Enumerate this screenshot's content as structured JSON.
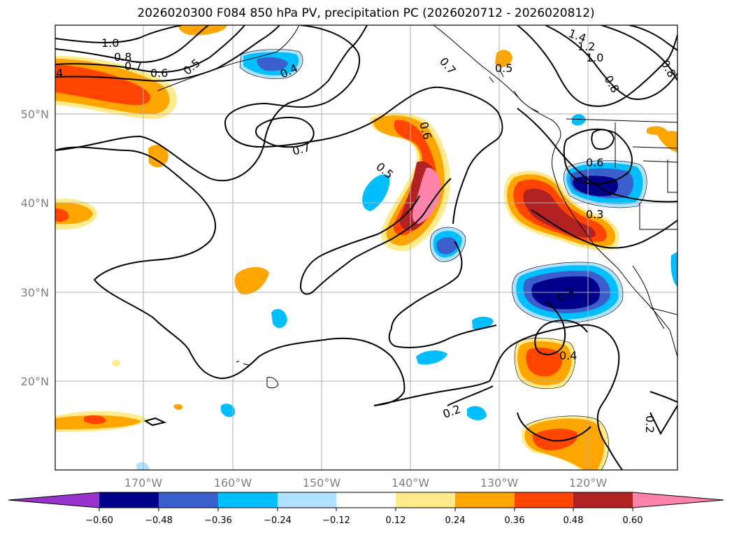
{
  "title": "2026020300 F084 850 hPa PV, precipitation PC (2026020712 - 2026020812)",
  "latitude_labels": [
    "50°N",
    "40°N",
    "30°N",
    "20°N"
  ],
  "longitude_labels": [
    "170°W",
    "160°W",
    "150°W",
    "140°W",
    "130°W",
    "120°W"
  ],
  "colorbar": {
    "tick_labels": [
      "−0.60",
      "−0.48",
      "−0.36",
      "−0.24",
      "−0.12",
      "0.12",
      "0.24",
      "0.36",
      "0.48",
      "0.60"
    ],
    "colors": [
      "#9932cc",
      "#00008b",
      "#3a5fcd",
      "#00bfff",
      "#b0e2ff",
      "#ffffff",
      "#ffeb8c",
      "#ffa500",
      "#ff4500",
      "#b22222",
      "#ff82ab"
    ]
  },
  "contour_labels": [
    "1.0",
    "0.8",
    "0.7",
    "0.6",
    "0.5",
    "0.4",
    "4",
    "1.4",
    "1.2",
    "1.0",
    "0.8",
    "0.8",
    "0.7",
    "0.5",
    "0.6",
    "0.7",
    "0.5",
    "0.6",
    "0.3",
    "0.3",
    "0.4",
    "0.2",
    "0.2"
  ],
  "colors": {
    "text": "#000000",
    "axis_label": "#808080",
    "grid": "#b0b0b0"
  }
}
